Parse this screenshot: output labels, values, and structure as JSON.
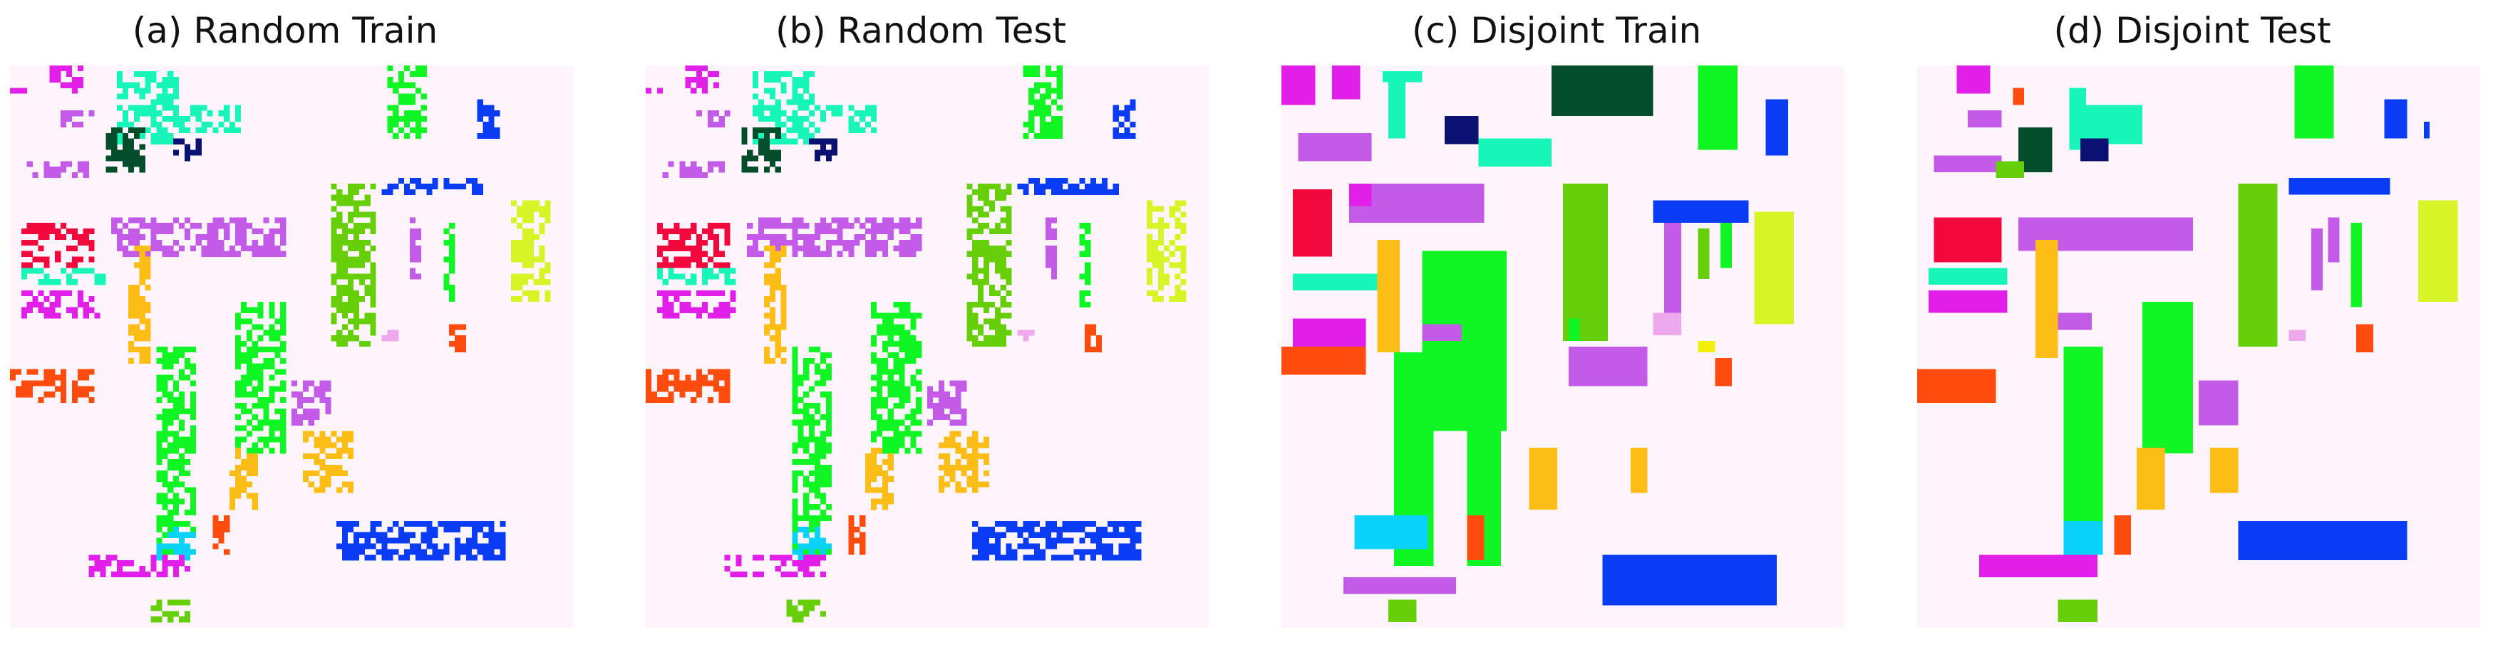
{
  "panels": [
    {
      "id": "random-train",
      "title": "(a) Random Train",
      "style": "sparse-train"
    },
    {
      "id": "random-test",
      "title": "(b) Random Test",
      "style": "sparse-test"
    },
    {
      "id": "disjoint-train",
      "title": "(c) Disjoint Train",
      "style": "disjoint-train"
    },
    {
      "id": "disjoint-test",
      "title": "(d) Disjoint Test",
      "style": "disjoint-test"
    }
  ],
  "background_color": "#fdf5fb",
  "class_colors": {
    "magenta": "#e21fe8",
    "violet": "#c45ae8",
    "lavender": "#c97ae0",
    "pink": "#eea8ee",
    "aqua": "#18f5b8",
    "darkgreen": "#044d2a",
    "navy": "#0a1173",
    "lime": "#10f524",
    "olive": "#66cf09",
    "yellowgreen": "#d7f526",
    "blue": "#0a3cf5",
    "crimson": "#f2083d",
    "orange": "#fe4b0e",
    "gold": "#fdbd17",
    "cyan": "#0ad3fb",
    "yellow": "#f2f00a"
  }
}
